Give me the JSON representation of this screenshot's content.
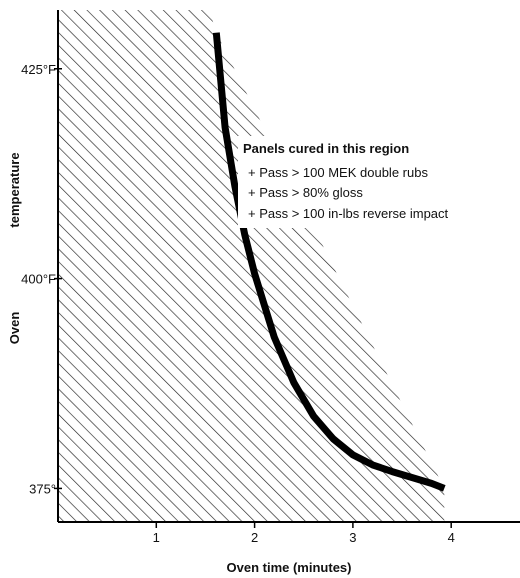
{
  "chart_data": {
    "type": "area",
    "title": "",
    "xlabel": "Oven time (minutes)",
    "ylabel": [
      "Oven",
      "temperature"
    ],
    "x_ticks": [
      {
        "value": 1,
        "label": "1"
      },
      {
        "value": 2,
        "label": "2"
      },
      {
        "value": 3,
        "label": "3"
      },
      {
        "value": 4,
        "label": "4"
      }
    ],
    "y_ticks": [
      {
        "value": 375,
        "label": "375°"
      },
      {
        "value": 400,
        "label": "400°F"
      },
      {
        "value": 425,
        "label": "425°F"
      }
    ],
    "xlim": [
      0,
      4.7
    ],
    "ylim": [
      371,
      432
    ],
    "curve": {
      "x": [
        1.61,
        1.7,
        1.8,
        1.9,
        2.0,
        2.2,
        2.4,
        2.6,
        2.8,
        3.0,
        3.2,
        3.4,
        3.6,
        3.8,
        3.93
      ],
      "y": [
        429.3,
        418.0,
        411.0,
        405.2,
        400.6,
        393.0,
        387.6,
        383.6,
        380.9,
        379.0,
        377.8,
        377.0,
        376.3,
        375.6,
        375.0
      ]
    },
    "region_boundary": {
      "x": [
        0.0,
        1.54,
        1.61,
        3.93,
        3.93,
        0.0
      ],
      "y": [
        432,
        432,
        429.3,
        375.0,
        371,
        371
      ]
    },
    "grid": false,
    "legend": "none",
    "colors": {
      "curve": "#000000",
      "hatch": "#222222",
      "axis": "#000000"
    },
    "annotation": {
      "title": "Panels cured in this region",
      "items": [
        "+ Pass > 100 MEK double rubs",
        "+ Pass > 80% gloss",
        "+ Pass > 100 in-lbs reverse impact"
      ]
    }
  }
}
